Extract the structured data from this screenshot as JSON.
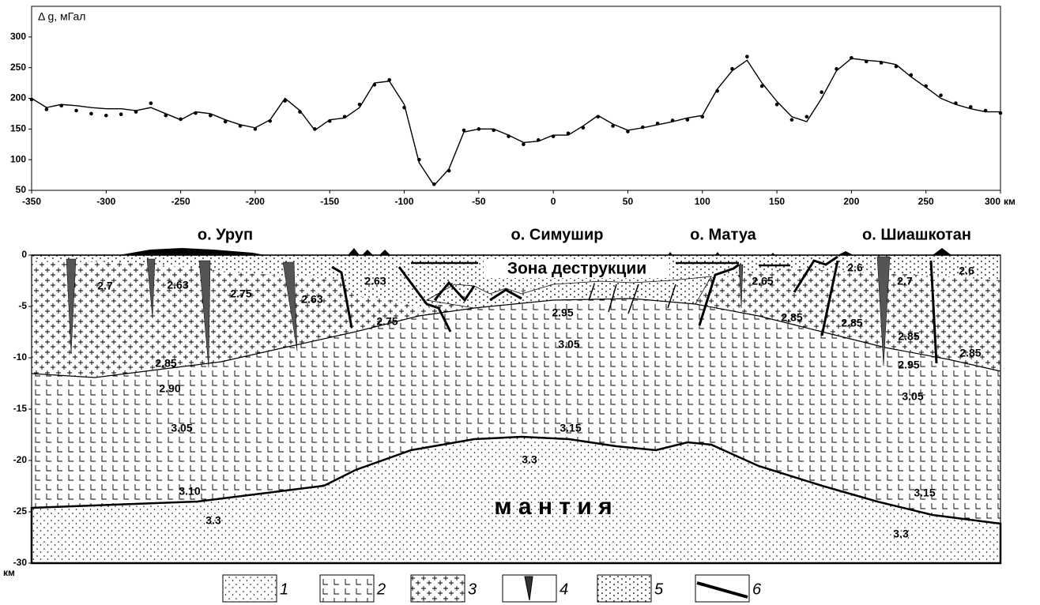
{
  "chart_data": [
    {
      "type": "line",
      "y_label": "Δ g, мГал",
      "x_unit": "км",
      "x": [
        -350,
        -340,
        -330,
        -320,
        -310,
        -300,
        -290,
        -280,
        -270,
        -260,
        -250,
        -240,
        -230,
        -220,
        -210,
        -200,
        -190,
        -180,
        -170,
        -160,
        -150,
        -140,
        -130,
        -120,
        -110,
        -100,
        -90,
        -80,
        -70,
        -60,
        -50,
        -40,
        -30,
        -20,
        -10,
        0,
        10,
        20,
        30,
        40,
        50,
        60,
        70,
        80,
        90,
        100,
        110,
        120,
        130,
        140,
        150,
        160,
        170,
        180,
        190,
        200,
        210,
        220,
        230,
        240,
        250,
        260,
        270,
        280,
        290,
        300
      ],
      "series": [
        {
          "style": "line",
          "color": "#000000",
          "values": [
            200,
            185,
            190,
            188,
            185,
            183,
            183,
            180,
            185,
            175,
            165,
            178,
            175,
            165,
            157,
            152,
            165,
            200,
            180,
            148,
            165,
            168,
            185,
            225,
            228,
            190,
            95,
            58,
            85,
            145,
            150,
            150,
            140,
            128,
            130,
            140,
            140,
            155,
            172,
            158,
            148,
            152,
            157,
            162,
            168,
            172,
            215,
            245,
            262,
            225,
            195,
            170,
            162,
            200,
            245,
            265,
            262,
            260,
            255,
            235,
            218,
            200,
            190,
            183,
            178,
            178
          ]
        },
        {
          "style": "dots",
          "color": "#000000",
          "values": [
            198,
            182,
            188,
            180,
            175,
            172,
            174,
            178,
            192,
            172,
            166,
            176,
            172,
            162,
            155,
            150,
            163,
            196,
            178,
            150,
            163,
            170,
            190,
            222,
            230,
            185,
            100,
            60,
            82,
            148,
            150,
            148,
            138,
            125,
            132,
            138,
            143,
            152,
            170,
            155,
            146,
            153,
            159,
            164,
            165,
            170,
            212,
            248,
            268,
            220,
            190,
            165,
            170,
            210,
            248,
            266,
            260,
            258,
            252,
            238,
            220,
            205,
            192,
            186,
            180,
            176
          ]
        }
      ],
      "xlim": [
        -350,
        300
      ],
      "ylim": [
        50,
        350
      ],
      "xticks": [
        -350,
        -300,
        -250,
        -200,
        -150,
        -100,
        -50,
        0,
        50,
        100,
        150,
        200,
        250,
        300
      ],
      "yticks": [
        50,
        100,
        150,
        200,
        250,
        300
      ]
    },
    {
      "type": "section",
      "y_unit": "км",
      "xlim": [
        -350,
        300
      ],
      "ylim": [
        -30,
        0
      ],
      "yticks": [
        0,
        -5,
        -10,
        -15,
        -20,
        -25,
        -30
      ],
      "islands": [
        "о. Уруп",
        "о. Симушир",
        "о. Матуа",
        "о. Шиашкотан"
      ],
      "zone_label": "Зона деструкции",
      "mantle_label": "м а н т и я",
      "density_labels": [
        "2.7",
        "2.63",
        "2.75",
        "2.63",
        "2.63",
        "2.75",
        "2.85",
        "2.90",
        "3.05",
        "3.10",
        "3.3",
        "2.95",
        "3.05",
        "3.15",
        "3.3",
        "2.65",
        "2.6",
        "2.7",
        "2.6",
        "2.85",
        "2.85",
        "2.85",
        "2.85",
        "2.95",
        "3.05",
        "3.15",
        "3.3"
      ],
      "legend": [
        "1",
        "2",
        "3",
        "4",
        "5",
        "6"
      ]
    }
  ]
}
